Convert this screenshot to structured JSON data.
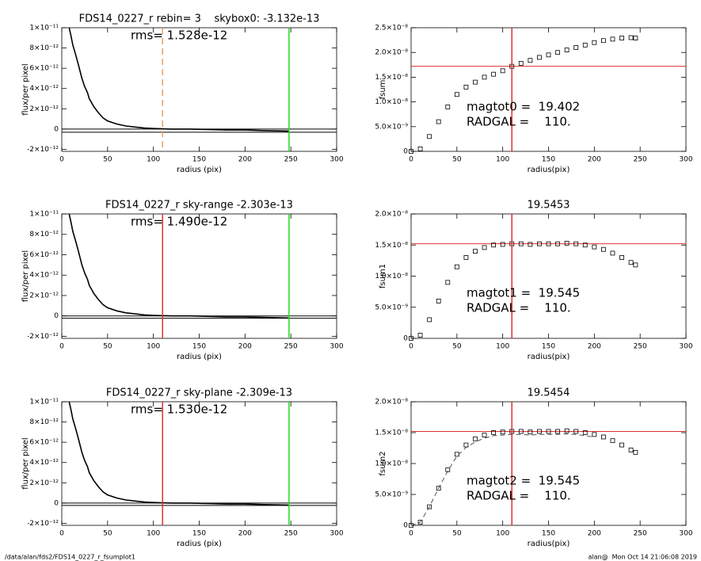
{
  "chart_data": [
    {
      "type": "line",
      "title": "FDS14_0227_r rebin= 3    skybox0: -3.132e-13",
      "annotations": [
        "rms= 1.528e-12"
      ],
      "x_label": "radius (pix)",
      "y_label": "flux/per pixel",
      "x": [
        8,
        10,
        12,
        15,
        18,
        20,
        22,
        25,
        28,
        30,
        35,
        40,
        45,
        50,
        60,
        70,
        80,
        90,
        100,
        120,
        140,
        160,
        180,
        200,
        220,
        248
      ],
      "series": [
        {
          "color": "#000000",
          "values": [
            1e-11,
            9.2e-12,
            8.3e-12,
            7.4e-12,
            6.4e-12,
            5.7e-12,
            5e-12,
            4.2e-12,
            3.6e-12,
            3e-12,
            2.2e-12,
            1.6e-12,
            1.1e-12,
            8e-13,
            5e-13,
            3e-13,
            2e-13,
            1e-13,
            5e-14,
            0,
            0,
            -5e-14,
            -1e-13,
            -1e-13,
            -1.5e-13,
            -2e-13
          ]
        }
      ],
      "vlines": [
        {
          "value": 110,
          "color": "#e8a060",
          "dash": true
        },
        {
          "value": 248,
          "color": "#22dd22"
        }
      ],
      "hlines": [
        {
          "value": 0,
          "color": "#000000"
        },
        {
          "value": -3.132e-13,
          "color": "#000000"
        }
      ],
      "xlim": [
        0,
        300
      ],
      "xticks": [
        0,
        50,
        100,
        150,
        200,
        250,
        300
      ],
      "ylim": [
        -2.2e-12,
        1e-11
      ],
      "yticks": [
        {
          "value": -2e-12,
          "label": "-2×10⁻¹²"
        },
        0,
        {
          "value": 2e-12,
          "label": "2×10⁻¹²"
        },
        {
          "value": 4e-12,
          "label": "4×10⁻¹²"
        },
        {
          "value": 6e-12,
          "label": "6×10⁻¹²"
        },
        {
          "value": 8e-12,
          "label": "8×10⁻¹²"
        },
        {
          "value": 1e-11,
          "label": "1×10⁻¹¹"
        }
      ]
    },
    {
      "type": "line",
      "marker": "square",
      "annotations": [
        "magtot0 =  19.402",
        "RADGAL =    110."
      ],
      "x_label": "radius(pix)",
      "y_label": "fsum",
      "x": [
        0,
        10,
        20,
        30,
        40,
        50,
        60,
        70,
        80,
        90,
        100,
        110,
        120,
        130,
        140,
        150,
        160,
        170,
        180,
        190,
        200,
        210,
        220,
        230,
        240,
        245
      ],
      "series": [
        {
          "color": "#000000",
          "values": [
            0,
            5e-10,
            3e-09,
            6e-09,
            9e-09,
            1.15e-08,
            1.3e-08,
            1.4e-08,
            1.5e-08,
            1.56e-08,
            1.63e-08,
            1.72e-08,
            1.78e-08,
            1.84e-08,
            1.9e-08,
            1.95e-08,
            2e-08,
            2.05e-08,
            2.1e-08,
            2.15e-08,
            2.2e-08,
            2.24e-08,
            2.27e-08,
            2.29e-08,
            2.3e-08,
            2.29e-08
          ]
        }
      ],
      "vlines": [
        {
          "value": 110,
          "color": "#dd3333"
        }
      ],
      "hlines": [
        {
          "value": 1.72e-08,
          "color": "#dd3333"
        }
      ],
      "xlim": [
        0,
        300
      ],
      "xticks": [
        0,
        50,
        100,
        150,
        200,
        250,
        300
      ],
      "ylim": [
        0,
        2.5e-08
      ],
      "yticks": [
        0,
        {
          "value": 5e-09,
          "label": "5.0×10⁻⁹"
        },
        {
          "value": 1e-08,
          "label": "1.0×10⁻⁸"
        },
        {
          "value": 1.5e-08,
          "label": "1.5×10⁻⁸"
        },
        {
          "value": 2e-08,
          "label": "2.0×10⁻⁸"
        },
        {
          "value": 2.5e-08,
          "label": "2.5×10⁻⁸"
        }
      ]
    },
    {
      "type": "line",
      "title": "FDS14_0227_r sky-range -2.303e-13",
      "annotations": [
        "rms= 1.490e-12"
      ],
      "x_label": "radius (pix)",
      "y_label": "flux/per pixel",
      "x": [
        8,
        10,
        12,
        15,
        18,
        20,
        22,
        25,
        28,
        30,
        35,
        40,
        45,
        50,
        60,
        70,
        80,
        90,
        100,
        120,
        140,
        160,
        180,
        200,
        220,
        248
      ],
      "series": [
        {
          "color": "#000000",
          "values": [
            1e-11,
            9.2e-12,
            8.3e-12,
            7.4e-12,
            6.4e-12,
            5.7e-12,
            5e-12,
            4.2e-12,
            3.6e-12,
            3e-12,
            2.2e-12,
            1.6e-12,
            1.1e-12,
            8e-13,
            5e-13,
            3e-13,
            2e-13,
            1e-13,
            5e-14,
            0,
            0,
            -5e-14,
            -1e-13,
            -1e-13,
            -1.5e-13,
            -2e-13
          ]
        }
      ],
      "vlines": [
        {
          "value": 110,
          "color": "#dd3333"
        },
        {
          "value": 248,
          "color": "#22dd22"
        }
      ],
      "hlines": [
        {
          "value": 0,
          "color": "#000000"
        },
        {
          "value": -2.303e-13,
          "color": "#000000"
        }
      ],
      "xlim": [
        0,
        300
      ],
      "xticks": [
        0,
        50,
        100,
        150,
        200,
        250,
        300
      ],
      "ylim": [
        -2.2e-12,
        1e-11
      ],
      "yticks": [
        {
          "value": -2e-12,
          "label": "-2×10⁻¹²"
        },
        0,
        {
          "value": 2e-12,
          "label": "2×10⁻¹²"
        },
        {
          "value": 4e-12,
          "label": "4×10⁻¹²"
        },
        {
          "value": 6e-12,
          "label": "6×10⁻¹²"
        },
        {
          "value": 8e-12,
          "label": "8×10⁻¹²"
        },
        {
          "value": 1e-11,
          "label": "1×10⁻¹¹"
        }
      ]
    },
    {
      "type": "line",
      "marker": "square",
      "title": "19.5453",
      "annotations": [
        "magtot1 =  19.545",
        "RADGAL =    110."
      ],
      "x_label": "radius(pix)",
      "y_label": "fsum1",
      "x": [
        0,
        10,
        20,
        30,
        40,
        50,
        60,
        70,
        80,
        90,
        100,
        110,
        120,
        130,
        140,
        150,
        160,
        170,
        180,
        190,
        200,
        210,
        220,
        230,
        240,
        245
      ],
      "series": [
        {
          "color": "#000000",
          "values": [
            0,
            5e-10,
            3e-09,
            6e-09,
            9e-09,
            1.15e-08,
            1.3e-08,
            1.4e-08,
            1.46e-08,
            1.5e-08,
            1.51e-08,
            1.52e-08,
            1.52e-08,
            1.51e-08,
            1.52e-08,
            1.52e-08,
            1.52e-08,
            1.53e-08,
            1.52e-08,
            1.5e-08,
            1.47e-08,
            1.43e-08,
            1.37e-08,
            1.3e-08,
            1.22e-08,
            1.18e-08
          ]
        }
      ],
      "vlines": [
        {
          "value": 110,
          "color": "#dd3333"
        }
      ],
      "hlines": [
        {
          "value": 1.52e-08,
          "color": "#dd3333"
        }
      ],
      "xlim": [
        0,
        300
      ],
      "xticks": [
        0,
        50,
        100,
        150,
        200,
        250,
        300
      ],
      "ylim": [
        0,
        2e-08
      ],
      "yticks": [
        0,
        {
          "value": 5e-09,
          "label": "5.0×10⁻⁹"
        },
        {
          "value": 1e-08,
          "label": "1.0×10⁻⁸"
        },
        {
          "value": 1.5e-08,
          "label": "1.5×10⁻⁸"
        },
        {
          "value": 2e-08,
          "label": "2.0×10⁻⁸"
        }
      ]
    },
    {
      "type": "line",
      "title": "FDS14_0227_r sky-plane -2.309e-13",
      "annotations": [
        "rms= 1.530e-12"
      ],
      "x_label": "radius (pix)",
      "y_label": "flux/per pixel",
      "x": [
        8,
        10,
        12,
        15,
        18,
        20,
        22,
        25,
        28,
        30,
        35,
        40,
        45,
        50,
        60,
        70,
        80,
        90,
        100,
        120,
        140,
        160,
        180,
        200,
        220,
        248
      ],
      "series": [
        {
          "color": "#000000",
          "values": [
            1e-11,
            9.2e-12,
            8.3e-12,
            7.4e-12,
            6.4e-12,
            5.7e-12,
            5e-12,
            4.2e-12,
            3.6e-12,
            3e-12,
            2.2e-12,
            1.6e-12,
            1.1e-12,
            8e-13,
            5e-13,
            3e-13,
            2e-13,
            1e-13,
            5e-14,
            0,
            0,
            -5e-14,
            -1e-13,
            -1e-13,
            -1.5e-13,
            -2e-13
          ]
        }
      ],
      "vlines": [
        {
          "value": 110,
          "color": "#dd3333"
        },
        {
          "value": 248,
          "color": "#22dd22"
        }
      ],
      "hlines": [
        {
          "value": 0,
          "color": "#000000"
        },
        {
          "value": -2.309e-13,
          "color": "#000000"
        }
      ],
      "xlim": [
        0,
        300
      ],
      "xticks": [
        0,
        50,
        100,
        150,
        200,
        250,
        300
      ],
      "ylim": [
        -2.2e-12,
        1e-11
      ],
      "yticks": [
        {
          "value": -2e-12,
          "label": "-2×10⁻¹²"
        },
        0,
        {
          "value": 2e-12,
          "label": "2×10⁻¹²"
        },
        {
          "value": 4e-12,
          "label": "4×10⁻¹²"
        },
        {
          "value": 6e-12,
          "label": "6×10⁻¹²"
        },
        {
          "value": 8e-12,
          "label": "8×10⁻¹²"
        },
        {
          "value": 1e-11,
          "label": "1×10⁻¹¹"
        }
      ]
    },
    {
      "type": "line",
      "marker": "square",
      "title": "19.5454",
      "annotations": [
        "magtot2 =  19.545",
        "RADGAL =    110."
      ],
      "x_label": "radius(pix)",
      "y_label": "fsum2",
      "x": [
        0,
        10,
        20,
        30,
        40,
        50,
        60,
        70,
        80,
        90,
        100,
        110,
        120,
        130,
        140,
        150,
        160,
        170,
        180,
        190,
        200,
        210,
        220,
        230,
        240,
        245
      ],
      "series": [
        {
          "color": "#000000",
          "values": [
            0,
            5e-10,
            3e-09,
            6e-09,
            9e-09,
            1.15e-08,
            1.3e-08,
            1.4e-08,
            1.46e-08,
            1.5e-08,
            1.51e-08,
            1.52e-08,
            1.52e-08,
            1.51e-08,
            1.52e-08,
            1.52e-08,
            1.52e-08,
            1.53e-08,
            1.52e-08,
            1.5e-08,
            1.47e-08,
            1.43e-08,
            1.37e-08,
            1.3e-08,
            1.22e-08,
            1.18e-08
          ]
        },
        {
          "color": "#555555",
          "dash": true,
          "values": [
            0,
            5e-10,
            3e-09,
            6e-09,
            8.8e-09,
            1.12e-08,
            1.26e-08,
            1.35e-08,
            1.41e-08,
            1.45e-08,
            1.46e-08,
            1.47e-08,
            1.47e-08,
            1.46e-08,
            1.47e-08,
            1.47e-08,
            1.47e-08,
            1.48e-08,
            1.47e-08,
            1.45e-08,
            1.43e-08,
            null,
            null,
            null,
            null,
            null
          ]
        }
      ],
      "vlines": [
        {
          "value": 110,
          "color": "#dd3333"
        }
      ],
      "hlines": [
        {
          "value": 1.52e-08,
          "color": "#dd3333"
        }
      ],
      "xlim": [
        0,
        300
      ],
      "xticks": [
        0,
        50,
        100,
        150,
        200,
        250,
        300
      ],
      "ylim": [
        0,
        2e-08
      ],
      "yticks": [
        0,
        {
          "value": 5e-09,
          "label": "5.0×10⁻⁹"
        },
        {
          "value": 1e-08,
          "label": "1.0×10⁻⁸"
        },
        {
          "value": 1.5e-08,
          "label": "1.5×10⁻⁸"
        },
        {
          "value": 2e-08,
          "label": "2.0×10⁻⁸"
        }
      ]
    }
  ],
  "footer": {
    "left": "/data/alan/fds2/FDS14_0227_r_fsumplot1",
    "right": "alan@  Mon Oct 14 21:06:08 2019"
  }
}
